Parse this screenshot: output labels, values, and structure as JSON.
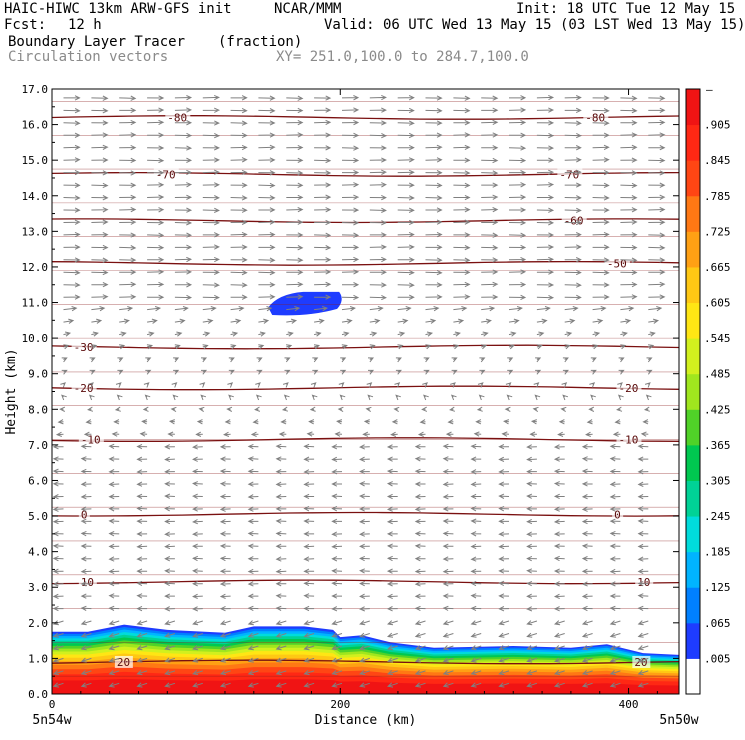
{
  "header": {
    "model_line": "HAIC-HIWC 13km ARW-GFS init",
    "org": "NCAR/MMM",
    "init": "Init: 18 UTC Tue 12 May 15",
    "fcst_label": "Fcst:",
    "fcst_value": "12 h",
    "valid": "Valid: 06 UTC Wed 13 May 15 (03 LST Wed 13 May 15)",
    "field_name": "Boundary Layer Tracer",
    "field_units": "(fraction)",
    "vectors_label": "Circulation vectors",
    "xy_label": "XY= 251.0,100.0 to 284.7,100.0"
  },
  "chart_data": {
    "type": "heatmap",
    "title": "Boundary Layer Tracer",
    "xlabel": "Distance (km)",
    "ylabel": "Height (km)",
    "xlim": [
      0,
      435
    ],
    "ylim": [
      0,
      17
    ],
    "x_ticks": [
      0,
      200,
      400
    ],
    "y_ticks": [
      "0.0",
      "1.0",
      "2.0",
      "3.0",
      "4.0",
      "5.0",
      "6.0",
      "7.0",
      "8.0",
      "9.0",
      "10.0",
      "11.0",
      "12.0",
      "13.0",
      "14.0",
      "15.0",
      "16.0",
      "17.0"
    ],
    "x_endpoints": [
      "5n54w",
      "5n50w"
    ],
    "colorbar": {
      "labels": [
        ".005",
        ".065",
        ".125",
        ".185",
        ".245",
        ".305",
        ".365",
        ".425",
        ".485",
        ".545",
        ".605",
        ".665",
        ".725",
        ".785",
        ".845",
        ".905"
      ],
      "top_label": "–",
      "colors": [
        "#ffffff",
        "#1e3cff",
        "#0080ff",
        "#00b4ff",
        "#00dcdc",
        "#00d296",
        "#00c850",
        "#50d228",
        "#a0e61e",
        "#d2f01e",
        "#ffe614",
        "#ffc814",
        "#ffa014",
        "#ff7814",
        "#ff4614",
        "#ff2814",
        "#f01414"
      ]
    },
    "isotherms": [
      {
        "label": "-80",
        "height": 16.2
      },
      {
        "label": "-70",
        "height": 14.6
      },
      {
        "label": "-60",
        "height": 13.3
      },
      {
        "label": "-50",
        "height": 12.1
      },
      {
        "label": "-30",
        "height": 9.75
      },
      {
        "label": "-20",
        "height": 8.6
      },
      {
        "label": "-10",
        "height": 7.15
      },
      {
        "label": "0",
        "height": 5.05
      },
      {
        "label": "10",
        "height": 3.15
      },
      {
        "label": "20",
        "height": 0.9
      }
    ],
    "isotherm_labels": [
      {
        "text": "-80",
        "x": 80,
        "height": 16.2
      },
      {
        "text": "-80",
        "x": 370,
        "height": 16.2
      },
      {
        "text": "-70",
        "x": 72,
        "height": 14.6
      },
      {
        "text": "-70",
        "x": 352,
        "height": 14.6
      },
      {
        "text": "-60",
        "x": 355,
        "height": 13.3
      },
      {
        "text": "-50",
        "x": 385,
        "height": 12.1
      },
      {
        "text": "-30",
        "x": 15,
        "height": 9.75
      },
      {
        "text": "-20",
        "x": 15,
        "height": 8.6
      },
      {
        "text": "-20",
        "x": 393,
        "height": 8.6
      },
      {
        "text": "-10",
        "x": 20,
        "height": 7.15
      },
      {
        "text": "-10",
        "x": 393,
        "height": 7.15
      },
      {
        "text": "0",
        "x": 20,
        "height": 5.05
      },
      {
        "text": "0",
        "x": 390,
        "height": 5.05
      },
      {
        "text": "10",
        "x": 20,
        "height": 3.15
      },
      {
        "text": "10",
        "x": 406,
        "height": 3.15
      },
      {
        "text": "20",
        "x": 45,
        "height": 0.9
      },
      {
        "text": "20",
        "x": 404,
        "height": 0.9
      }
    ],
    "tracer_top_profile": [
      {
        "x": 0,
        "height": 1.75
      },
      {
        "x": 25,
        "height": 1.75
      },
      {
        "x": 50,
        "height": 1.95
      },
      {
        "x": 80,
        "height": 1.8
      },
      {
        "x": 120,
        "height": 1.72
      },
      {
        "x": 140,
        "height": 1.9
      },
      {
        "x": 175,
        "height": 1.9
      },
      {
        "x": 195,
        "height": 1.8
      },
      {
        "x": 200,
        "height": 1.6
      },
      {
        "x": 215,
        "height": 1.65
      },
      {
        "x": 235,
        "height": 1.45
      },
      {
        "x": 265,
        "height": 1.3
      },
      {
        "x": 320,
        "height": 1.35
      },
      {
        "x": 360,
        "height": 1.3
      },
      {
        "x": 385,
        "height": 1.4
      },
      {
        "x": 410,
        "height": 1.15
      },
      {
        "x": 435,
        "height": 1.1
      }
    ],
    "cloud_blob": {
      "x_range": [
        150,
        202
      ],
      "height_range": [
        10.65,
        11.3
      ],
      "level": ".005"
    },
    "vector_rows": [
      {
        "height": 16.75,
        "u": 1
      },
      {
        "height": 16.4,
        "u": 1
      },
      {
        "height": 16.05,
        "u": 1
      },
      {
        "height": 15.7,
        "u": 1
      },
      {
        "height": 15.35,
        "u": 1
      },
      {
        "height": 15.0,
        "u": 1
      },
      {
        "height": 14.65,
        "u": 1
      },
      {
        "height": 14.3,
        "u": 1
      },
      {
        "height": 13.95,
        "u": 1
      },
      {
        "height": 13.6,
        "u": 1
      },
      {
        "height": 13.25,
        "u": 1
      },
      {
        "height": 12.9,
        "u": 1
      },
      {
        "height": 12.55,
        "u": 1
      },
      {
        "height": 12.2,
        "u": 1
      },
      {
        "height": 11.85,
        "u": 1
      },
      {
        "height": 11.5,
        "u": 1
      },
      {
        "height": 11.15,
        "u": 1
      },
      {
        "height": 10.8,
        "u": 0.8
      },
      {
        "height": 10.45,
        "u": 0.6
      },
      {
        "height": 10.1,
        "u": 0.4
      },
      {
        "height": 9.75,
        "u": 0.3
      },
      {
        "height": 9.4,
        "u": 0.2
      },
      {
        "height": 9.05,
        "u": 0.2
      },
      {
        "height": 8.7,
        "u": 0.1
      },
      {
        "height": 8.35,
        "u": -0.1
      },
      {
        "height": 8.0,
        "u": -0.2
      },
      {
        "height": 7.65,
        "u": -0.3
      },
      {
        "height": 7.3,
        "u": -0.4
      },
      {
        "height": 6.95,
        "u": -0.6
      },
      {
        "height": 6.6,
        "u": -0.6
      },
      {
        "height": 6.25,
        "u": -0.6
      },
      {
        "height": 5.9,
        "u": -0.6
      },
      {
        "height": 5.55,
        "u": -0.6
      },
      {
        "height": 5.2,
        "u": -0.6
      },
      {
        "height": 4.85,
        "u": -0.6
      },
      {
        "height": 4.5,
        "u": -0.6
      },
      {
        "height": 4.15,
        "u": -0.6
      },
      {
        "height": 3.8,
        "u": -0.6
      },
      {
        "height": 3.45,
        "u": -0.6
      },
      {
        "height": 3.1,
        "u": -0.6
      },
      {
        "height": 2.75,
        "u": -0.6
      },
      {
        "height": 2.4,
        "u": -0.6
      },
      {
        "height": 2.05,
        "u": -0.6
      },
      {
        "height": 1.7,
        "u": -0.6
      },
      {
        "height": 1.35,
        "u": -0.6
      },
      {
        "height": 1.0,
        "u": -0.6
      },
      {
        "height": 0.65,
        "u": -0.6
      },
      {
        "height": 0.3,
        "u": -0.6
      }
    ]
  }
}
